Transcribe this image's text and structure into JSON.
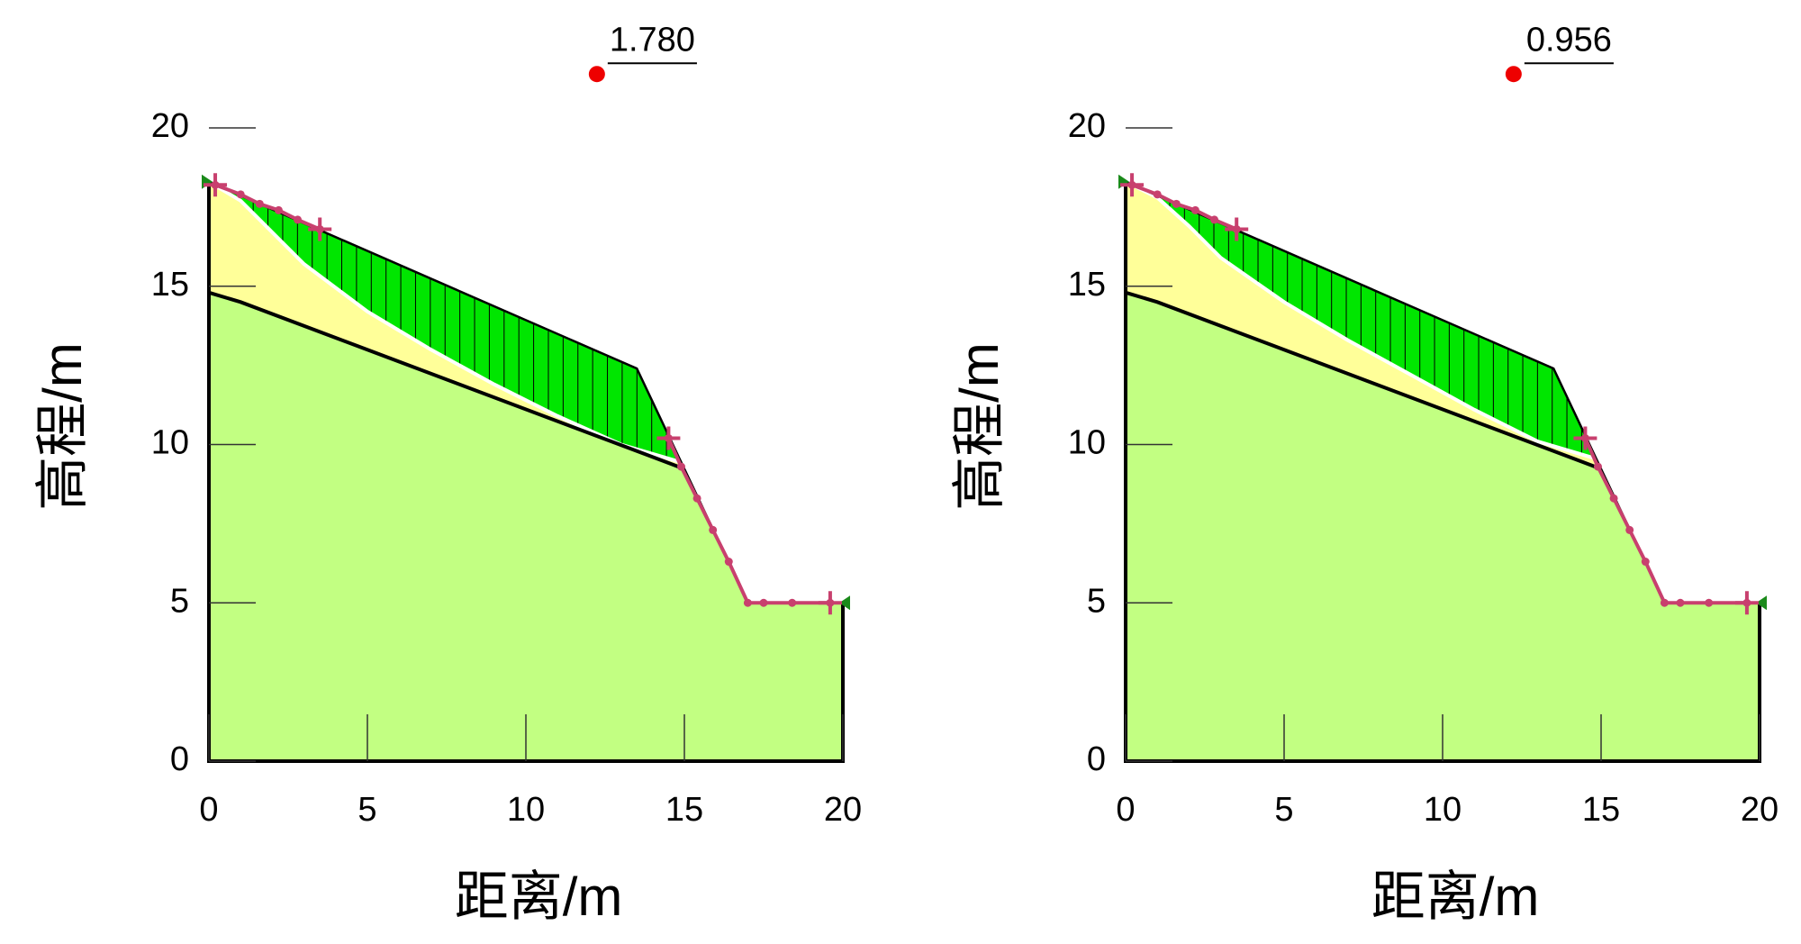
{
  "chart_data": [
    {
      "type": "slope",
      "xlabel": "距离/m",
      "ylabel": "高程/m",
      "xlim": [
        0,
        20
      ],
      "ylim": [
        0,
        20
      ],
      "xticks": [
        0,
        5,
        10,
        15,
        20
      ],
      "yticks": [
        0,
        5,
        10,
        15,
        20
      ],
      "ground": {
        "x": [
          0,
          13.5,
          17,
          20
        ],
        "y": [
          18.3,
          12.4,
          5,
          5
        ]
      },
      "layer": {
        "x": [
          0,
          1,
          15
        ],
        "y": [
          14.8,
          14.5,
          9.23
        ]
      },
      "slip": {
        "x": [
          0,
          1,
          2,
          3,
          5,
          7,
          9,
          11,
          13,
          14.9
        ],
        "y": [
          18.3,
          17.7,
          16.7,
          15.7,
          14.2,
          13.0,
          11.9,
          10.9,
          10.0,
          9.44
        ]
      },
      "search_points": {
        "x": [
          0.2,
          1,
          1.6,
          2.2,
          2.8,
          3.5,
          null,
          14.5,
          14.9,
          15.4,
          15.9,
          16.4,
          17,
          17.5,
          18.4,
          19.6
        ],
        "y": [
          18.2,
          17.9,
          17.6,
          17.4,
          17.1,
          16.8,
          null,
          10.2,
          9.3,
          8.3,
          7.3,
          6.3,
          5,
          5,
          5,
          5
        ]
      },
      "center": {
        "x": 12.24,
        "y": 21.7
      },
      "factor_of_safety": {
        "value": 1.78,
        "label": "1.780"
      }
    },
    {
      "type": "slope",
      "xlabel": "距离/m",
      "ylabel": "高程/m",
      "xlim": [
        0,
        20
      ],
      "ylim": [
        0,
        20
      ],
      "xticks": [
        0,
        5,
        10,
        15,
        20
      ],
      "yticks": [
        0,
        5,
        10,
        15,
        20
      ],
      "ground": {
        "x": [
          0,
          13.5,
          17,
          20
        ],
        "y": [
          18.3,
          12.4,
          5,
          5
        ]
      },
      "layer": {
        "x": [
          0,
          1,
          15
        ],
        "y": [
          14.8,
          14.5,
          9.23
        ]
      },
      "slip": {
        "x": [
          0,
          1,
          2,
          3,
          5,
          7,
          9,
          11,
          13,
          14.85
        ],
        "y": [
          18.3,
          17.8,
          16.9,
          15.9,
          14.5,
          13.3,
          12.2,
          11.1,
          10.1,
          9.55
        ]
      },
      "search_points": {
        "x": [
          0.2,
          1,
          1.6,
          2.2,
          2.8,
          3.5,
          null,
          14.5,
          14.9,
          15.4,
          15.9,
          16.4,
          17,
          17.5,
          18.4,
          19.6
        ],
        "y": [
          18.2,
          17.9,
          17.6,
          17.4,
          17.1,
          16.8,
          null,
          10.2,
          9.3,
          8.3,
          7.3,
          6.3,
          5,
          5,
          5,
          5
        ]
      },
      "center": {
        "x": 12.24,
        "y": 21.7
      },
      "factor_of_safety": {
        "value": 0.956,
        "label": "0.956"
      }
    }
  ]
}
